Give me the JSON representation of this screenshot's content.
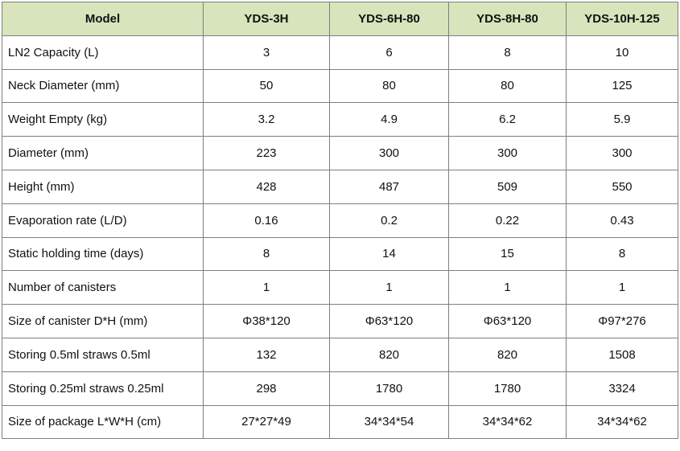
{
  "table": {
    "header": [
      "Model",
      "YDS-3H",
      "YDS-6H-80",
      "YDS-8H-80",
      "YDS-10H-125"
    ],
    "rows": [
      [
        "LN2 Capacity (L)",
        "3",
        "6",
        "8",
        "10"
      ],
      [
        "Neck Diameter (mm)",
        "50",
        "80",
        "80",
        "125"
      ],
      [
        "Weight Empty (kg)",
        "3.2",
        "4.9",
        "6.2",
        "5.9"
      ],
      [
        "Diameter (mm)",
        "223",
        "300",
        "300",
        "300"
      ],
      [
        "Height (mm)",
        "428",
        "487",
        "509",
        "550"
      ],
      [
        "Evaporation rate (L/D)",
        "0.16",
        "0.2",
        "0.22",
        "0.43"
      ],
      [
        "Static holding time (days)",
        "8",
        "14",
        "15",
        "8"
      ],
      [
        "Number of canisters",
        "1",
        "1",
        "1",
        "1"
      ],
      [
        "Size of canister D*H (mm)",
        "Φ38*120",
        "Φ63*120",
        "Φ63*120",
        "Φ97*276"
      ],
      [
        "Storing 0.5ml straws 0.5ml",
        "132",
        "820",
        "820",
        "1508"
      ],
      [
        "Storing 0.25ml straws 0.25ml",
        "298",
        "1780",
        "1780",
        "3324"
      ],
      [
        "Size of package L*W*H (cm)",
        "27*27*49",
        "34*34*54",
        "34*34*62",
        "34*34*62"
      ]
    ]
  }
}
